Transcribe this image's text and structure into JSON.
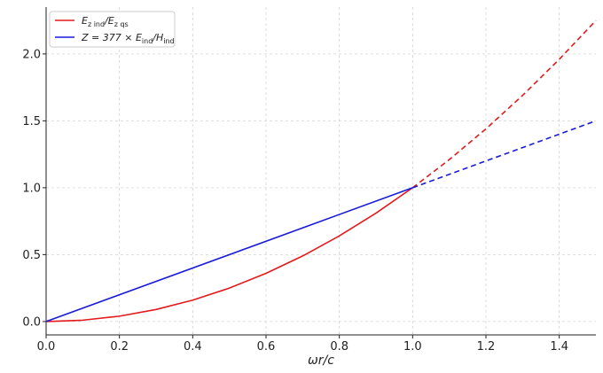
{
  "chart_data": {
    "type": "line",
    "xlabel": "ωr/c",
    "ylabel": "",
    "xlim": [
      0,
      1.5
    ],
    "ylim": [
      -0.1,
      2.35
    ],
    "xticks": [
      0.0,
      0.2,
      0.4,
      0.6,
      0.8,
      1.0,
      1.2,
      1.4
    ],
    "xtick_labels": [
      "0.0",
      "0.2",
      "0.4",
      "0.6",
      "0.8",
      "1.0",
      "1.2",
      "1.4"
    ],
    "yticks": [
      0.0,
      0.5,
      1.0,
      1.5,
      2.0
    ],
    "ytick_labels": [
      "0.0",
      "0.5",
      "1.0",
      "1.5",
      "2.0"
    ],
    "grid": true,
    "legend_position": "top-left",
    "series": [
      {
        "name": "Ezind/Ezqs",
        "color": "#e31a1c",
        "solid": {
          "x": [
            0.0,
            0.1,
            0.2,
            0.3,
            0.4,
            0.5,
            0.6,
            0.7,
            0.8,
            0.9,
            1.0
          ],
          "y": [
            0.0,
            0.01,
            0.04,
            0.09,
            0.16,
            0.25,
            0.36,
            0.49,
            0.64,
            0.81,
            1.0
          ]
        },
        "dashed": {
          "x": [
            1.0,
            1.1,
            1.2,
            1.3,
            1.4,
            1.5
          ],
          "y": [
            1.0,
            1.21,
            1.44,
            1.69,
            1.96,
            2.25
          ]
        }
      },
      {
        "name": "Z = 377 × Eind/Hind",
        "color": "#1a1adb",
        "solid": {
          "x": [
            0.0,
            1.0
          ],
          "y": [
            0.0,
            1.0
          ]
        },
        "dashed": {
          "x": [
            1.0,
            1.5
          ],
          "y": [
            1.0,
            1.5
          ]
        }
      }
    ]
  },
  "legend": {
    "entry1": {
      "main": "E",
      "sub1": "z ind",
      "mid": "/E",
      "sub2": "z qs"
    },
    "entry2": {
      "prefix": "Z = 377 × E",
      "sub1": "ind",
      "mid": "/H",
      "sub2": "ind"
    }
  }
}
